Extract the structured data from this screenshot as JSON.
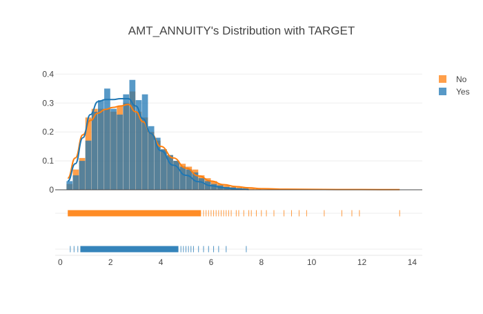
{
  "chart_data": {
    "type": "histogram",
    "title": "AMT_ANNUITY's Distribution with TARGET",
    "xlabel": "",
    "ylabel": "",
    "xlim": [
      -0.2,
      14.4
    ],
    "ylim": [
      0,
      0.42
    ],
    "xticks": [
      "0",
      "2",
      "4",
      "6",
      "8",
      "10",
      "12",
      "14"
    ],
    "yticks": [
      "0",
      "0.1",
      "0.2",
      "0.3",
      "0.4"
    ],
    "legend": {
      "position": "top-right",
      "entries": [
        "No",
        "Yes"
      ]
    },
    "bin_width": 0.25,
    "series": [
      {
        "name": "No",
        "color": "#ff7f0e",
        "opacity": 0.75,
        "bin_start": 0.25,
        "densities": [
          0.02,
          0.07,
          0.11,
          0.25,
          0.28,
          0.28,
          0.28,
          0.27,
          0.29,
          0.3,
          0.34,
          0.27,
          0.25,
          0.2,
          0.17,
          0.14,
          0.12,
          0.1,
          0.09,
          0.08,
          0.07,
          0.05,
          0.04,
          0.03,
          0.02,
          0.015,
          0.01,
          0.008,
          0.006,
          0.004,
          0.003
        ]
      },
      {
        "name": "Yes",
        "color": "#1f77b4",
        "opacity": 0.75,
        "bin_start": 0.25,
        "densities": [
          0.03,
          0.05,
          0.1,
          0.17,
          0.27,
          0.31,
          0.35,
          0.28,
          0.26,
          0.33,
          0.38,
          0.31,
          0.33,
          0.22,
          0.18,
          0.14,
          0.12,
          0.1,
          0.08,
          0.07,
          0.06,
          0.04,
          0.03,
          0.02,
          0.015,
          0.01,
          0.008,
          0.005
        ]
      }
    ],
    "kde": [
      {
        "name": "No",
        "x": [
          0.3,
          0.6,
          0.9,
          1.2,
          1.5,
          1.8,
          2.1,
          2.4,
          2.7,
          3.0,
          3.3,
          3.6,
          4.0,
          4.5,
          5.0,
          5.5,
          6.0,
          6.5,
          7.0,
          7.5,
          8.0,
          9.0,
          10.0,
          11.0,
          12.0,
          13.5
        ],
        "y": [
          0.04,
          0.11,
          0.19,
          0.24,
          0.265,
          0.278,
          0.285,
          0.29,
          0.295,
          0.27,
          0.235,
          0.195,
          0.15,
          0.11,
          0.075,
          0.048,
          0.03,
          0.018,
          0.011,
          0.007,
          0.004,
          0.002,
          0.0015,
          0.001,
          0.0008,
          0.0005
        ]
      },
      {
        "name": "Yes",
        "x": [
          0.3,
          0.6,
          0.9,
          1.2,
          1.5,
          1.8,
          2.1,
          2.4,
          2.7,
          3.0,
          3.3,
          3.6,
          4.0,
          4.5,
          5.0,
          5.5,
          6.0,
          6.5,
          7.0,
          7.5
        ],
        "y": [
          0.03,
          0.09,
          0.18,
          0.26,
          0.305,
          0.312,
          0.312,
          0.315,
          0.315,
          0.29,
          0.245,
          0.195,
          0.135,
          0.085,
          0.05,
          0.028,
          0.014,
          0.007,
          0.003,
          0.001
        ]
      }
    ],
    "rug": [
      {
        "name": "No",
        "dense_range": [
          0.3,
          5.6
        ],
        "x": [
          5.7,
          5.8,
          5.9,
          6.0,
          6.1,
          6.2,
          6.3,
          6.4,
          6.5,
          6.6,
          6.7,
          6.8,
          7.0,
          7.1,
          7.3,
          7.5,
          7.6,
          7.8,
          8.0,
          8.2,
          8.5,
          8.9,
          9.2,
          9.5,
          9.8,
          10.5,
          11.2,
          11.6,
          11.9,
          13.5
        ]
      },
      {
        "name": "Yes",
        "dense_range": [
          0.8,
          4.7
        ],
        "x": [
          0.4,
          0.55,
          0.7,
          4.8,
          4.9,
          5.0,
          5.1,
          5.2,
          5.3,
          5.5,
          5.7,
          5.9,
          6.1,
          6.3,
          6.6,
          7.4
        ]
      }
    ]
  }
}
